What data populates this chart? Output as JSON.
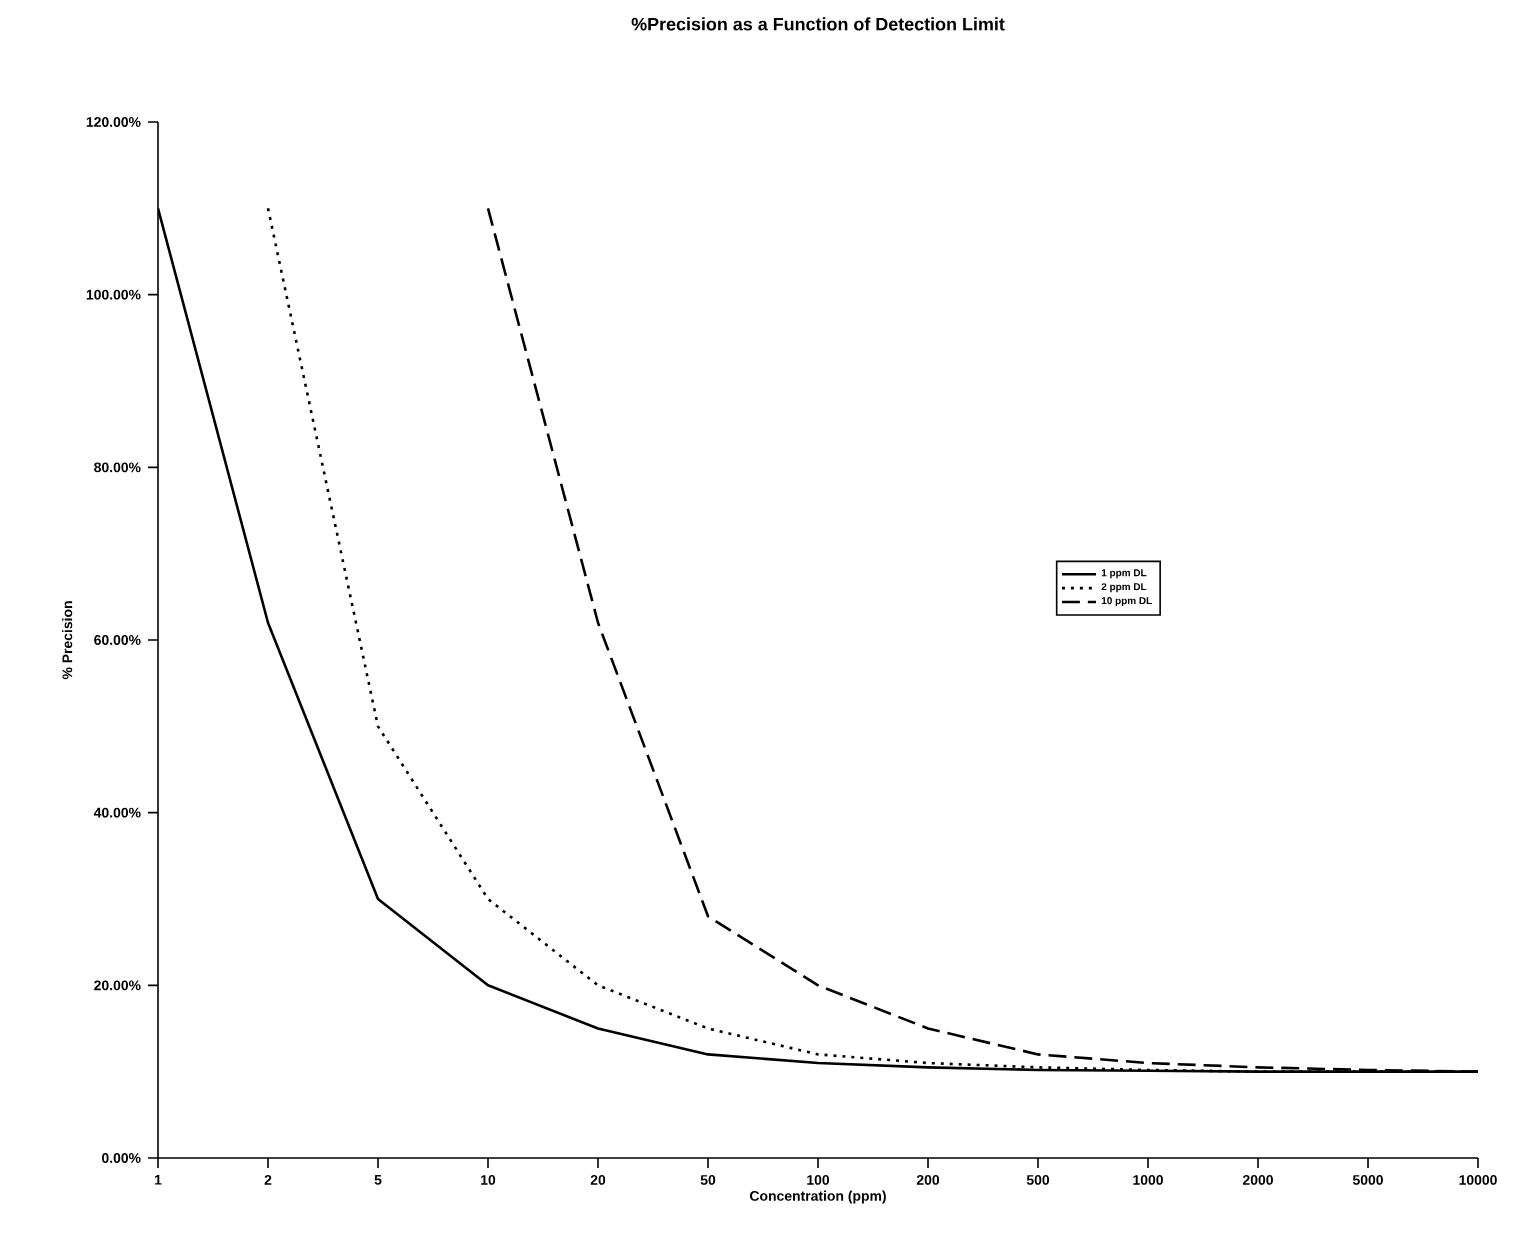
{
  "chart_data": {
    "type": "line",
    "title": "%Precision as a Function of Detection Limit",
    "xlabel": "Concentration (ppm)",
    "ylabel": "% Precision",
    "categories": [
      "1",
      "2",
      "5",
      "10",
      "20",
      "50",
      "100",
      "200",
      "500",
      "1000",
      "2000",
      "5000",
      "10000"
    ],
    "series": [
      {
        "name": "1 ppm DL",
        "color": "#000000",
        "line_style": "solid",
        "values": [
          110,
          62,
          30,
          20,
          15,
          12,
          11,
          10.5,
          10.2,
          10.1,
          10,
          10,
          10
        ]
      },
      {
        "name": "2 ppm DL",
        "color": "#000000",
        "line_style": "dotted",
        "values": [
          null,
          110,
          50,
          30,
          20,
          15,
          12,
          11,
          10.5,
          10.2,
          10,
          10,
          10
        ]
      },
      {
        "name": "10 ppm DL",
        "color": "#000000",
        "line_style": "dashed",
        "values": [
          null,
          null,
          null,
          110,
          62,
          28,
          20,
          15,
          12,
          11,
          10.5,
          10.2,
          10
        ]
      }
    ],
    "ylim": [
      0,
      120
    ],
    "yticks": [
      {
        "value": 0,
        "label": "0.00%"
      },
      {
        "value": 20,
        "label": "20.00%"
      },
      {
        "value": 40,
        "label": "40.00%"
      },
      {
        "value": 60,
        "label": "60.00%"
      },
      {
        "value": 80,
        "label": "80.00%"
      },
      {
        "value": 100,
        "label": "100.00%"
      },
      {
        "value": 120,
        "label": "120.00%"
      }
    ],
    "grid": false,
    "legend": "right",
    "marker": "none"
  }
}
